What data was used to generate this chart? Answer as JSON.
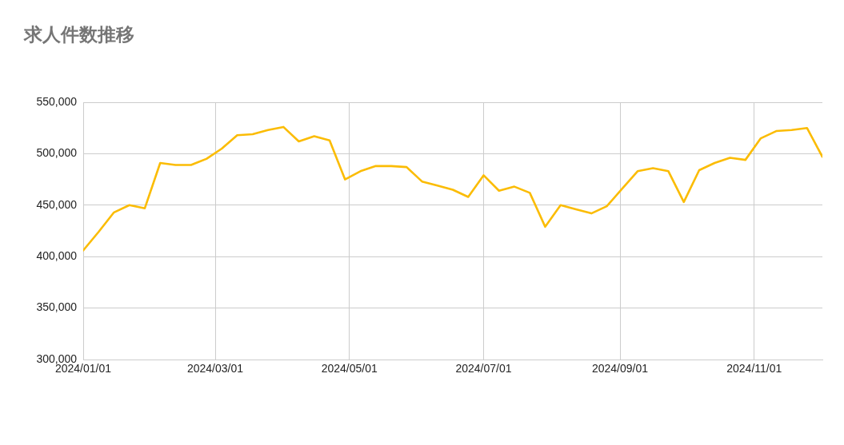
{
  "chart_data": {
    "type": "line",
    "title": "求人件数推移",
    "x": [
      "2024-01-01",
      "2024-01-08",
      "2024-01-15",
      "2024-01-22",
      "2024-01-29",
      "2024-02-05",
      "2024-02-12",
      "2024-02-19",
      "2024-02-26",
      "2024-03-04",
      "2024-03-11",
      "2024-03-18",
      "2024-03-25",
      "2024-04-01",
      "2024-04-08",
      "2024-04-15",
      "2024-04-22",
      "2024-04-29",
      "2024-05-06",
      "2024-05-13",
      "2024-05-20",
      "2024-05-27",
      "2024-06-03",
      "2024-06-10",
      "2024-06-17",
      "2024-06-24",
      "2024-07-01",
      "2024-07-08",
      "2024-07-15",
      "2024-07-22",
      "2024-07-29",
      "2024-08-05",
      "2024-08-12",
      "2024-08-19",
      "2024-08-26",
      "2024-09-02",
      "2024-09-09",
      "2024-09-16",
      "2024-09-23",
      "2024-09-30",
      "2024-10-07",
      "2024-10-14",
      "2024-10-21",
      "2024-10-28",
      "2024-11-04",
      "2024-11-11",
      "2024-11-18",
      "2024-11-25",
      "2024-12-02"
    ],
    "values": [
      406000,
      424000,
      443000,
      450000,
      447000,
      491000,
      489000,
      489000,
      495000,
      505000,
      518000,
      519000,
      523000,
      526000,
      512000,
      517000,
      513000,
      475000,
      483000,
      488000,
      488000,
      487000,
      473000,
      469000,
      465000,
      458000,
      479000,
      464000,
      468000,
      462000,
      429000,
      450000,
      446000,
      442000,
      449000,
      466000,
      483000,
      486000,
      483000,
      453000,
      484000,
      491000,
      496000,
      494000,
      515000,
      522000,
      523000,
      525000,
      497000
    ],
    "color": "#fbbc04",
    "xlim": [
      "2024-01-01",
      "2024-12-02"
    ],
    "xticks": [
      {
        "value": "2024-01-01",
        "label": "2024/01/01"
      },
      {
        "value": "2024-03-01",
        "label": "2024/03/01"
      },
      {
        "value": "2024-05-01",
        "label": "2024/05/01"
      },
      {
        "value": "2024-07-01",
        "label": "2024/07/01"
      },
      {
        "value": "2024-09-01",
        "label": "2024/09/01"
      },
      {
        "value": "2024-11-01",
        "label": "2024/11/01"
      }
    ],
    "ylim": [
      300000,
      550000
    ],
    "yticks": [
      {
        "value": 300000,
        "label": "300,000"
      },
      {
        "value": 350000,
        "label": "350,000"
      },
      {
        "value": 400000,
        "label": "400,000"
      },
      {
        "value": 450000,
        "label": "450,000"
      },
      {
        "value": 500000,
        "label": "500,000"
      },
      {
        "value": 550000,
        "label": "550,000"
      }
    ],
    "grid": true
  }
}
